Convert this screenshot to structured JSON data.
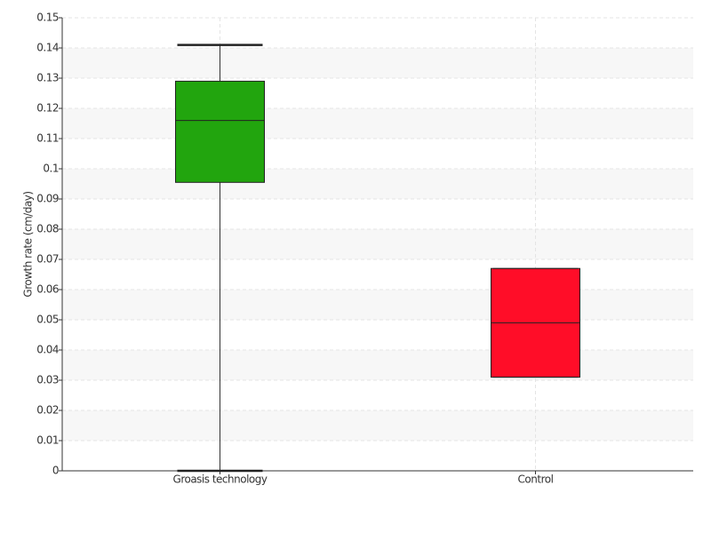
{
  "chart_data": {
    "type": "box",
    "ylabel": "Growth rate (cm/day)",
    "categories": [
      "Groasis technology",
      "Control"
    ],
    "boxes": [
      {
        "min": 0,
        "q1": 0.0955,
        "median": 0.116,
        "q3": 0.129,
        "max": 0.141,
        "color": "#22a50e"
      },
      {
        "min": 0.031,
        "q1": 0.031,
        "median": 0.049,
        "q3": 0.067,
        "max": 0.067,
        "color": "#ff0d28"
      }
    ],
    "ylim": [
      0,
      0.15
    ],
    "yticks": [
      0,
      0.01,
      0.02,
      0.03,
      0.04,
      0.05,
      0.06,
      0.07,
      0.08,
      0.09,
      0.1,
      0.11,
      0.12,
      0.13,
      0.14,
      0.15
    ],
    "grid": true
  }
}
